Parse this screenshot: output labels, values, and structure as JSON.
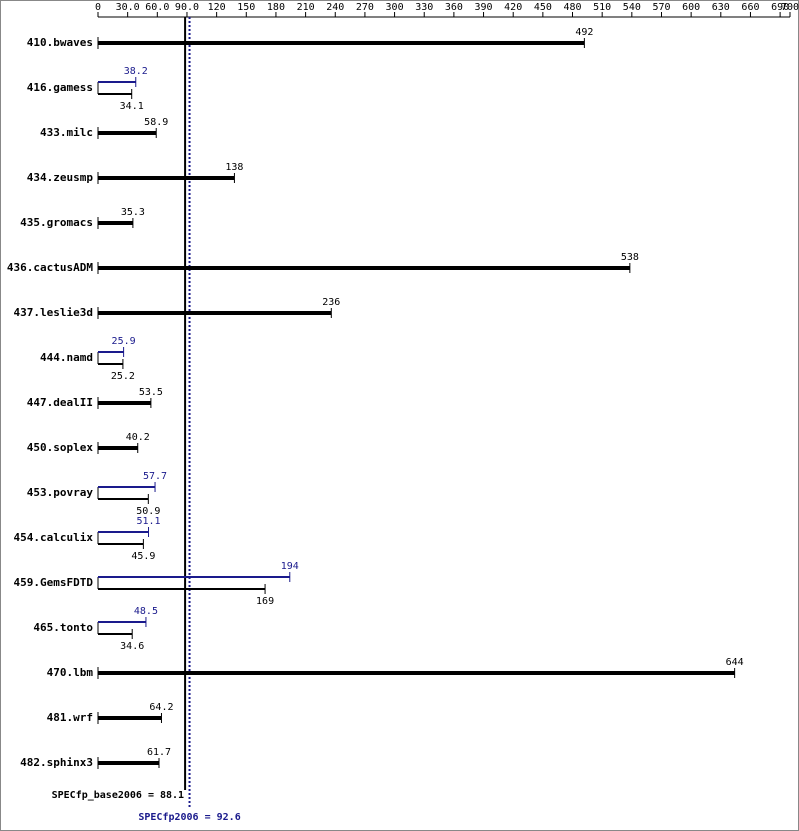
{
  "chart_data": {
    "type": "bar",
    "categories": [
      "410.bwaves",
      "416.gamess",
      "433.milc",
      "434.zeusmp",
      "435.gromacs",
      "436.cactusADM",
      "437.leslie3d",
      "444.namd",
      "447.dealII",
      "450.soplex",
      "453.povray",
      "454.calculix",
      "459.GemsFDTD",
      "465.tonto",
      "470.lbm",
      "481.wrf",
      "482.sphinx3"
    ],
    "series": [
      {
        "name": "base",
        "color": "#000000",
        "values": [
          492,
          34.1,
          58.9,
          138,
          35.3,
          538,
          236,
          25.2,
          53.5,
          40.2,
          50.9,
          45.9,
          169,
          34.6,
          644,
          64.2,
          61.7
        ]
      },
      {
        "name": "peak",
        "color": "#1a1a8c",
        "values": [
          null,
          38.2,
          null,
          null,
          null,
          null,
          null,
          25.9,
          null,
          null,
          57.7,
          51.1,
          194,
          48.5,
          null,
          null,
          null
        ]
      }
    ],
    "xlim": [
      0,
      700
    ],
    "xticks": [
      0,
      {
        "value": 30,
        "label": "30.0"
      },
      {
        "value": 60,
        "label": "60.0"
      },
      {
        "value": 90,
        "label": "90.0"
      },
      120,
      150,
      180,
      210,
      240,
      270,
      300,
      330,
      360,
      390,
      420,
      450,
      480,
      510,
      540,
      570,
      600,
      630,
      660,
      690,
      700
    ],
    "reference_lines": [
      {
        "label": "SPECfp_base2006 = 88.1",
        "value": 88.1,
        "color": "#000000",
        "style": "solid"
      },
      {
        "label": "SPECfp2006 = 92.6",
        "value": 92.6,
        "color": "#1a1a8c",
        "style": "dotted"
      }
    ]
  }
}
